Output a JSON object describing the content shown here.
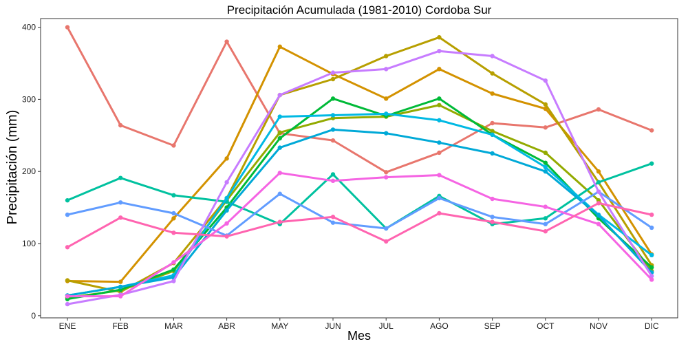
{
  "chart_data": {
    "type": "line",
    "title": "Precipitación Acumulada (1981-2010)  Cordoba Sur",
    "xlabel": "Mes",
    "ylabel": "Precipitación  (mm)",
    "categories": [
      "ENE",
      "FEB",
      "MAR",
      "ABR",
      "MAY",
      "JUN",
      "JUL",
      "AGO",
      "SEP",
      "OCT",
      "NOV",
      "DIC"
    ],
    "ylim": [
      -3,
      412
    ],
    "yticks": [
      0,
      100,
      200,
      300,
      400
    ],
    "grid": false,
    "legend": "none",
    "series": [
      {
        "color": "#E8766D",
        "values": [
          400,
          264,
          236,
          380,
          253,
          243,
          199,
          226,
          267,
          261,
          286,
          257
        ]
      },
      {
        "color": "#D39200",
        "values": [
          48,
          47,
          135,
          218,
          373,
          335,
          301,
          342,
          308,
          287,
          200,
          85
        ]
      },
      {
        "color": "#B79F00",
        "values": [
          49,
          33,
          73,
          163,
          306,
          328,
          360,
          386,
          336,
          293,
          185,
          70
        ]
      },
      {
        "color": "#93AA00",
        "values": [
          25,
          35,
          62,
          160,
          254,
          274,
          276,
          292,
          256,
          226,
          160,
          62
        ]
      },
      {
        "color": "#00BA38",
        "values": [
          23,
          36,
          64,
          150,
          246,
          301,
          277,
          301,
          251,
          212,
          135,
          67
        ]
      },
      {
        "color": "#00C19F",
        "values": [
          160,
          191,
          167,
          158,
          127,
          196,
          121,
          166,
          127,
          135,
          185,
          211
        ]
      },
      {
        "color": "#00B9E3",
        "values": [
          28,
          40,
          56,
          163,
          276,
          278,
          280,
          271,
          251,
          206,
          140,
          84
        ]
      },
      {
        "color": "#00A9D7",
        "values": [
          28,
          40,
          53,
          146,
          233,
          258,
          253,
          240,
          225,
          200,
          139,
          60
        ]
      },
      {
        "color": "#619CFF",
        "values": [
          140,
          157,
          142,
          111,
          169,
          129,
          121,
          163,
          137,
          127,
          172,
          122
        ]
      },
      {
        "color": "#C77CFF",
        "values": [
          16,
          29,
          48,
          185,
          306,
          337,
          342,
          367,
          360,
          326,
          172,
          55
        ]
      },
      {
        "color": "#F564E3",
        "values": [
          27,
          27,
          74,
          128,
          198,
          187,
          192,
          195,
          162,
          151,
          127,
          50
        ]
      },
      {
        "color": "#FF64B0",
        "values": [
          95,
          136,
          115,
          110,
          130,
          137,
          103,
          142,
          130,
          117,
          156,
          140
        ]
      }
    ]
  }
}
